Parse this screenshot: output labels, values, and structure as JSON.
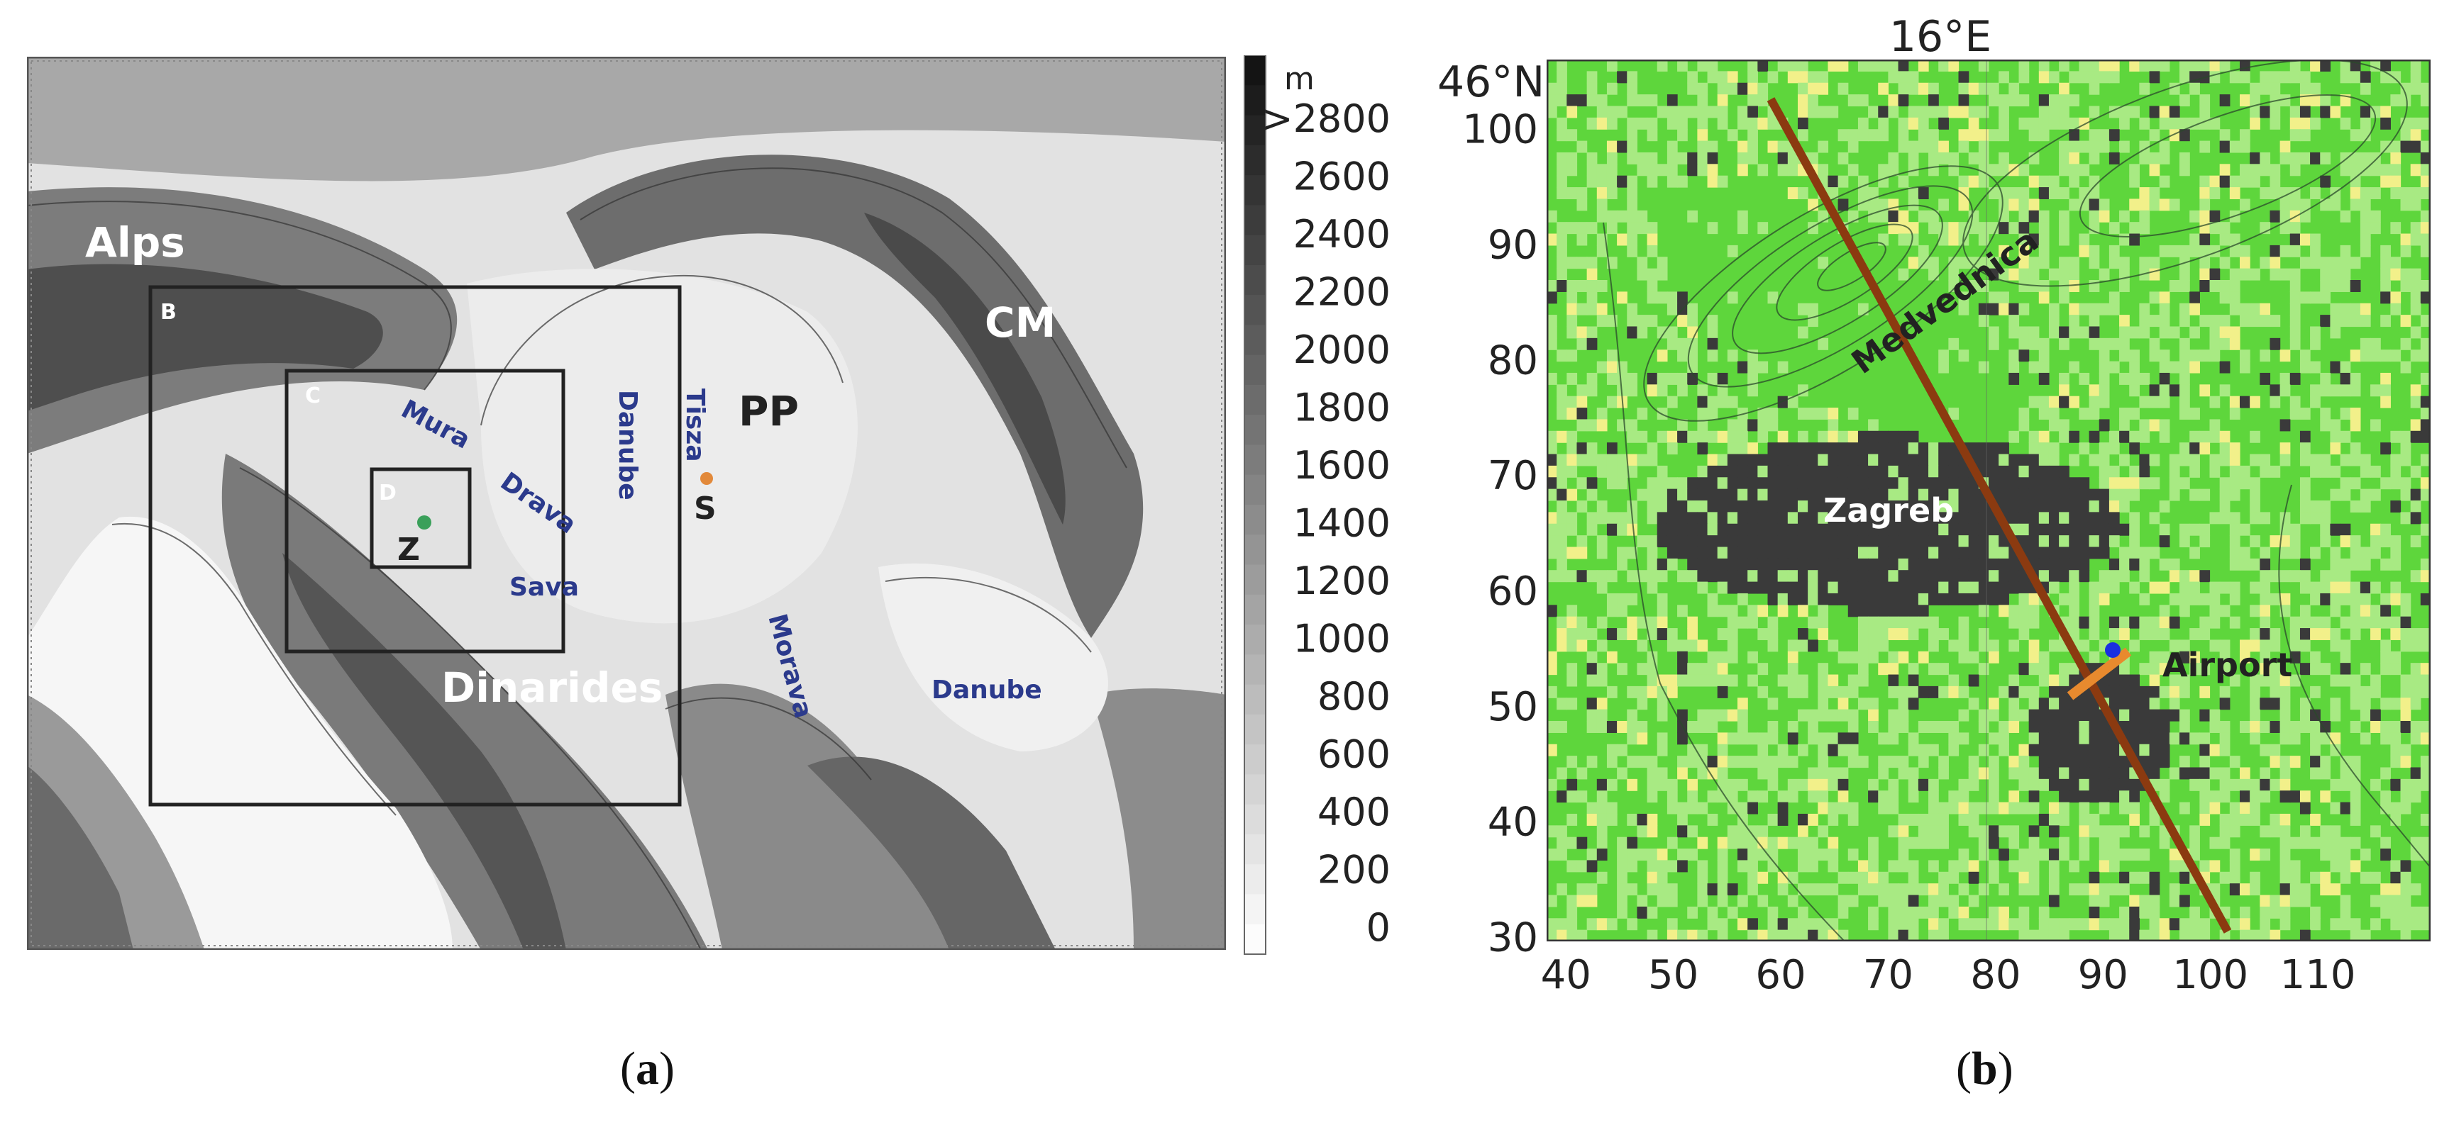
{
  "panel_a": {
    "caption": "a",
    "regions": [
      {
        "id": "alps",
        "text": "Alps",
        "style": "white"
      },
      {
        "id": "cm",
        "text": "CM",
        "style": "white"
      },
      {
        "id": "pp",
        "text": "PP",
        "style": "dark"
      },
      {
        "id": "dinarides",
        "text": "Dinarides",
        "style": "white"
      }
    ],
    "domains": [
      {
        "id": "b",
        "text": "B"
      },
      {
        "id": "c",
        "text": "C"
      },
      {
        "id": "d",
        "text": "D"
      }
    ],
    "rivers": [
      {
        "id": "mura",
        "text": "Mura"
      },
      {
        "id": "drava",
        "text": "Drava"
      },
      {
        "id": "sava",
        "text": "Sava"
      },
      {
        "id": "danube1",
        "text": "Danube"
      },
      {
        "id": "tisza",
        "text": "Tisza"
      },
      {
        "id": "morava",
        "text": "Morava"
      },
      {
        "id": "danube2",
        "text": "Danube"
      }
    ],
    "sites": [
      {
        "id": "z",
        "text": "Z",
        "color": "#3aa05a"
      },
      {
        "id": "s",
        "text": "S",
        "color": "#e2893a"
      }
    ],
    "colorbar": {
      "unit": "m",
      "ticks": [
        ">2800",
        "2600",
        "2400",
        "2200",
        "2000",
        "1800",
        "1600",
        "1400",
        "1200",
        "1000",
        "800",
        "600",
        "400",
        "200",
        "0"
      ]
    }
  },
  "panel_b": {
    "caption": "b",
    "top_label": "16°E",
    "left_label": "46°N",
    "x_ticks": [
      "40",
      "50",
      "60",
      "70",
      "80",
      "90",
      "100",
      "110"
    ],
    "y_ticks": [
      "100",
      "90",
      "80",
      "70",
      "60",
      "50",
      "40",
      "30"
    ],
    "labels": [
      {
        "id": "medvednica",
        "text": "Medvednica"
      },
      {
        "id": "zagreb",
        "text": "Zagreb"
      },
      {
        "id": "airport",
        "text": "Airport"
      }
    ],
    "colors": {
      "urban": "#3a3a3a",
      "forest": "#5ed63c",
      "grass": "#a8ea83",
      "crop": "#f2f08a",
      "transect": "#8b3a10",
      "runway": "#e88a2e",
      "site": "#1a2fe0"
    }
  }
}
